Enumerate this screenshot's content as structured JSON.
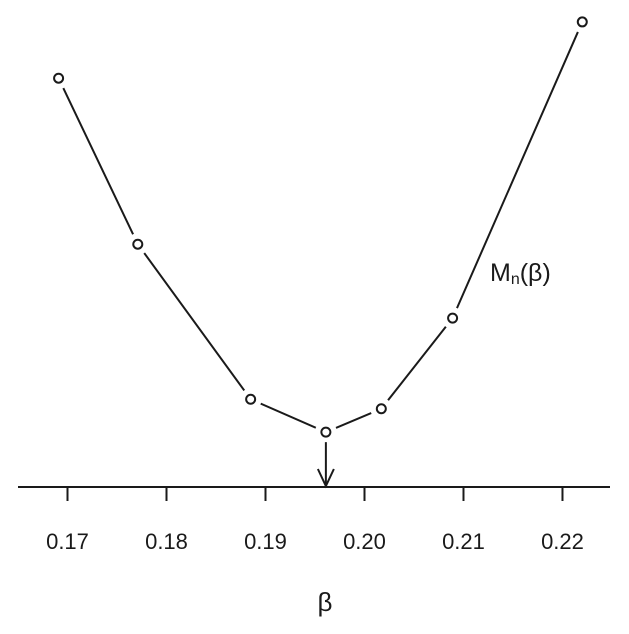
{
  "chart_data": {
    "type": "line",
    "series": [
      {
        "x": [
          0.1691,
          0.1771,
          0.1885,
          0.1961,
          0.2017,
          0.2089,
          0.222
        ],
        "values": [
          85.7,
          50.9,
          18.4,
          11.5,
          16.4,
          35.4,
          97.5
        ],
        "color": "#1a1a1a"
      }
    ],
    "xlim": [
      0.165,
      0.2248
    ],
    "ylim": [
      0,
      100
    ],
    "xticks": [
      0.17,
      0.18,
      0.19,
      {
        "value": 0.2,
        "label": "0.20"
      },
      0.21,
      0.22
    ],
    "xlabel": "β",
    "annotation": {
      "main": "M",
      "sub": "n",
      "tail": "(β)"
    },
    "minimum_arrow": true,
    "grid": false
  }
}
